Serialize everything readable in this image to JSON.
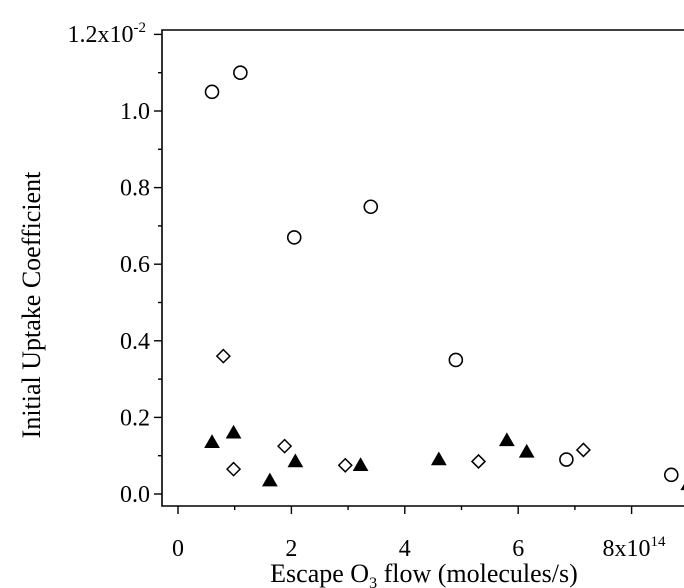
{
  "chart_data": {
    "type": "scatter",
    "title": "",
    "xlabel": {
      "pre": "Escape O",
      "sub": "3",
      "post": " flow (molecules/s)"
    },
    "ylabel": "Initial Uptake Coefficient",
    "xlim": [
      -0.3,
      9.0
    ],
    "ylim": [
      -0.05,
      1.22
    ],
    "y_scale_factor_label": {
      "base": "1.2x10",
      "exp": "-2"
    },
    "x_scale_factor_label": {
      "base": "8x10",
      "exp": "14"
    },
    "x_ticks": [
      {
        "value": 0,
        "label": "0"
      },
      {
        "value": 2,
        "label": "2"
      },
      {
        "value": 4,
        "label": "4"
      },
      {
        "value": 6,
        "label": "6"
      }
    ],
    "x_minor_ticks": [
      1,
      3,
      5,
      7
    ],
    "y_ticks": [
      {
        "value": 0.0,
        "label": "0.0"
      },
      {
        "value": 0.2,
        "label": "0.2"
      },
      {
        "value": 0.4,
        "label": "0.4"
      },
      {
        "value": 0.6,
        "label": "0.6"
      },
      {
        "value": 0.8,
        "label": "0.8"
      },
      {
        "value": 1.0,
        "label": "1.0"
      }
    ],
    "y_minor_ticks": [
      0.1,
      0.3,
      0.5,
      0.7,
      0.9,
      1.1
    ],
    "grid": false,
    "series": [
      {
        "marker": "open-circle",
        "points": [
          {
            "x": 0.6,
            "y": 1.05
          },
          {
            "x": 1.1,
            "y": 1.1
          },
          {
            "x": 2.05,
            "y": 0.67
          },
          {
            "x": 3.4,
            "y": 0.75
          },
          {
            "x": 4.9,
            "y": 0.35
          },
          {
            "x": 6.85,
            "y": 0.09
          },
          {
            "x": 8.7,
            "y": 0.05
          }
        ]
      },
      {
        "marker": "open-diamond",
        "points": [
          {
            "x": 0.8,
            "y": 0.36
          },
          {
            "x": 0.98,
            "y": 0.065
          },
          {
            "x": 1.88,
            "y": 0.125
          },
          {
            "x": 2.95,
            "y": 0.075
          },
          {
            "x": 5.3,
            "y": 0.085
          },
          {
            "x": 7.15,
            "y": 0.115
          }
        ]
      },
      {
        "marker": "filled-triangle",
        "points": [
          {
            "x": 0.6,
            "y": 0.135
          },
          {
            "x": 0.98,
            "y": 0.16
          },
          {
            "x": 1.62,
            "y": 0.035
          },
          {
            "x": 2.07,
            "y": 0.085
          },
          {
            "x": 3.22,
            "y": 0.075
          },
          {
            "x": 4.6,
            "y": 0.09
          },
          {
            "x": 5.8,
            "y": 0.14
          },
          {
            "x": 6.15,
            "y": 0.11
          },
          {
            "x": 9.0,
            "y": 0.025
          }
        ]
      }
    ]
  }
}
